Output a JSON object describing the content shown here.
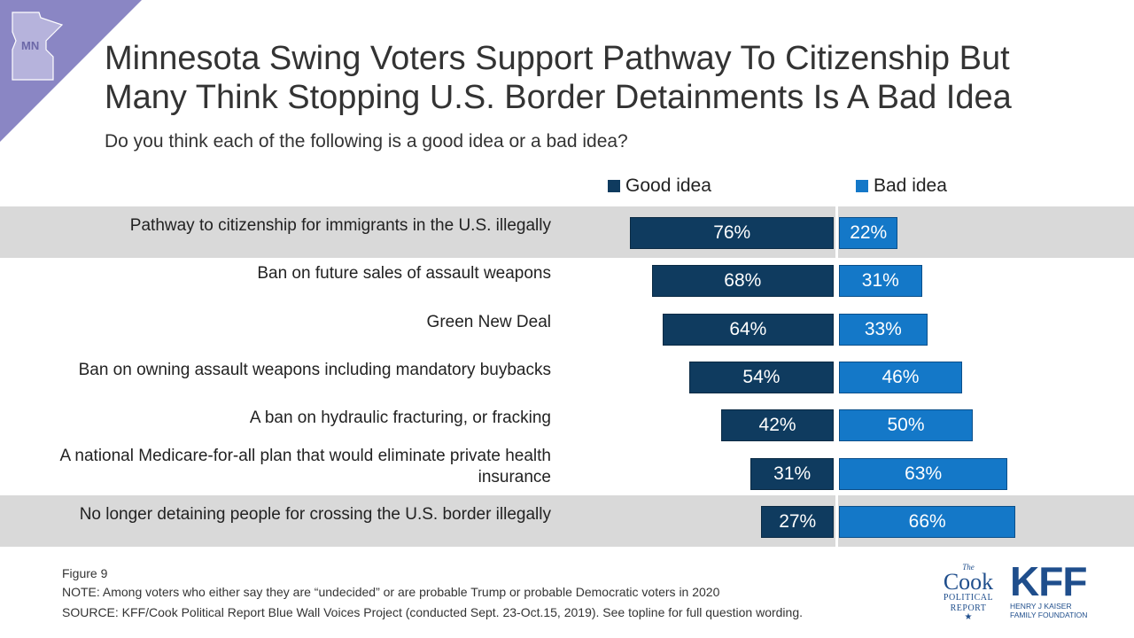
{
  "header": {
    "state_badge": "MN",
    "title_line1": "Minnesota Swing Voters Support Pathway To Citizenship But",
    "title_line2": "Many Think Stopping U.S. Border Detainments Is A Bad Idea",
    "subtitle": "Do you think each of the following is a good idea or a bad idea?"
  },
  "colors": {
    "good": "#0f3b5f",
    "bad": "#1478c8",
    "band": "#d9d9d9",
    "corner": "#8a86c4"
  },
  "chart_data": {
    "type": "bar",
    "orientation": "horizontal-diverging",
    "title": "Minnesota Swing Voters Support Pathway To Citizenship But Many Think Stopping U.S. Border Detainments Is A Bad Idea",
    "subtitle": "Do you think each of the following is a good idea or a bad idea?",
    "legend": [
      "Good idea",
      "Bad idea"
    ],
    "legend_placement": "top",
    "categories": [
      "Pathway to citizenship for immigrants in the U.S. illegally",
      "Ban on future sales of assault weapons",
      "Green New Deal",
      "Ban on owning assault weapons including mandatory buybacks",
      "A ban on hydraulic fracturing, or fracking",
      "A national Medicare-for-all plan that would eliminate private health insurance",
      "No longer detaining people for crossing the U.S. border illegally"
    ],
    "series": [
      {
        "name": "Good idea",
        "values": [
          76,
          68,
          64,
          54,
          42,
          31,
          27
        ],
        "labels": [
          "76%",
          "68%",
          "64%",
          "54%",
          "42%",
          "31%",
          "27%"
        ]
      },
      {
        "name": "Bad idea",
        "values": [
          22,
          31,
          33,
          46,
          50,
          63,
          66
        ],
        "labels": [
          "22%",
          "31%",
          "33%",
          "46%",
          "50%",
          "63%",
          "66%"
        ]
      }
    ],
    "unit": "%",
    "highlighted_rows": [
      0,
      6
    ],
    "grid": false
  },
  "footer": {
    "figure": "Figure 9",
    "note": "NOTE: Among voters who either say they are “undecided” or are probable Trump or probable Democratic voters in 2020",
    "source": "SOURCE: KFF/Cook Political Report Blue Wall Voices Project (conducted Sept. 23-Oct.15, 2019). See topline for full question wording."
  },
  "logos": {
    "cook_the": "The",
    "cook_name": "Cook",
    "cook_line1": "POLITICAL",
    "cook_line2": "REPORT",
    "kff_name": "KFF",
    "kff_line1": "HENRY J KAISER",
    "kff_line2": "FAMILY FOUNDATION"
  }
}
